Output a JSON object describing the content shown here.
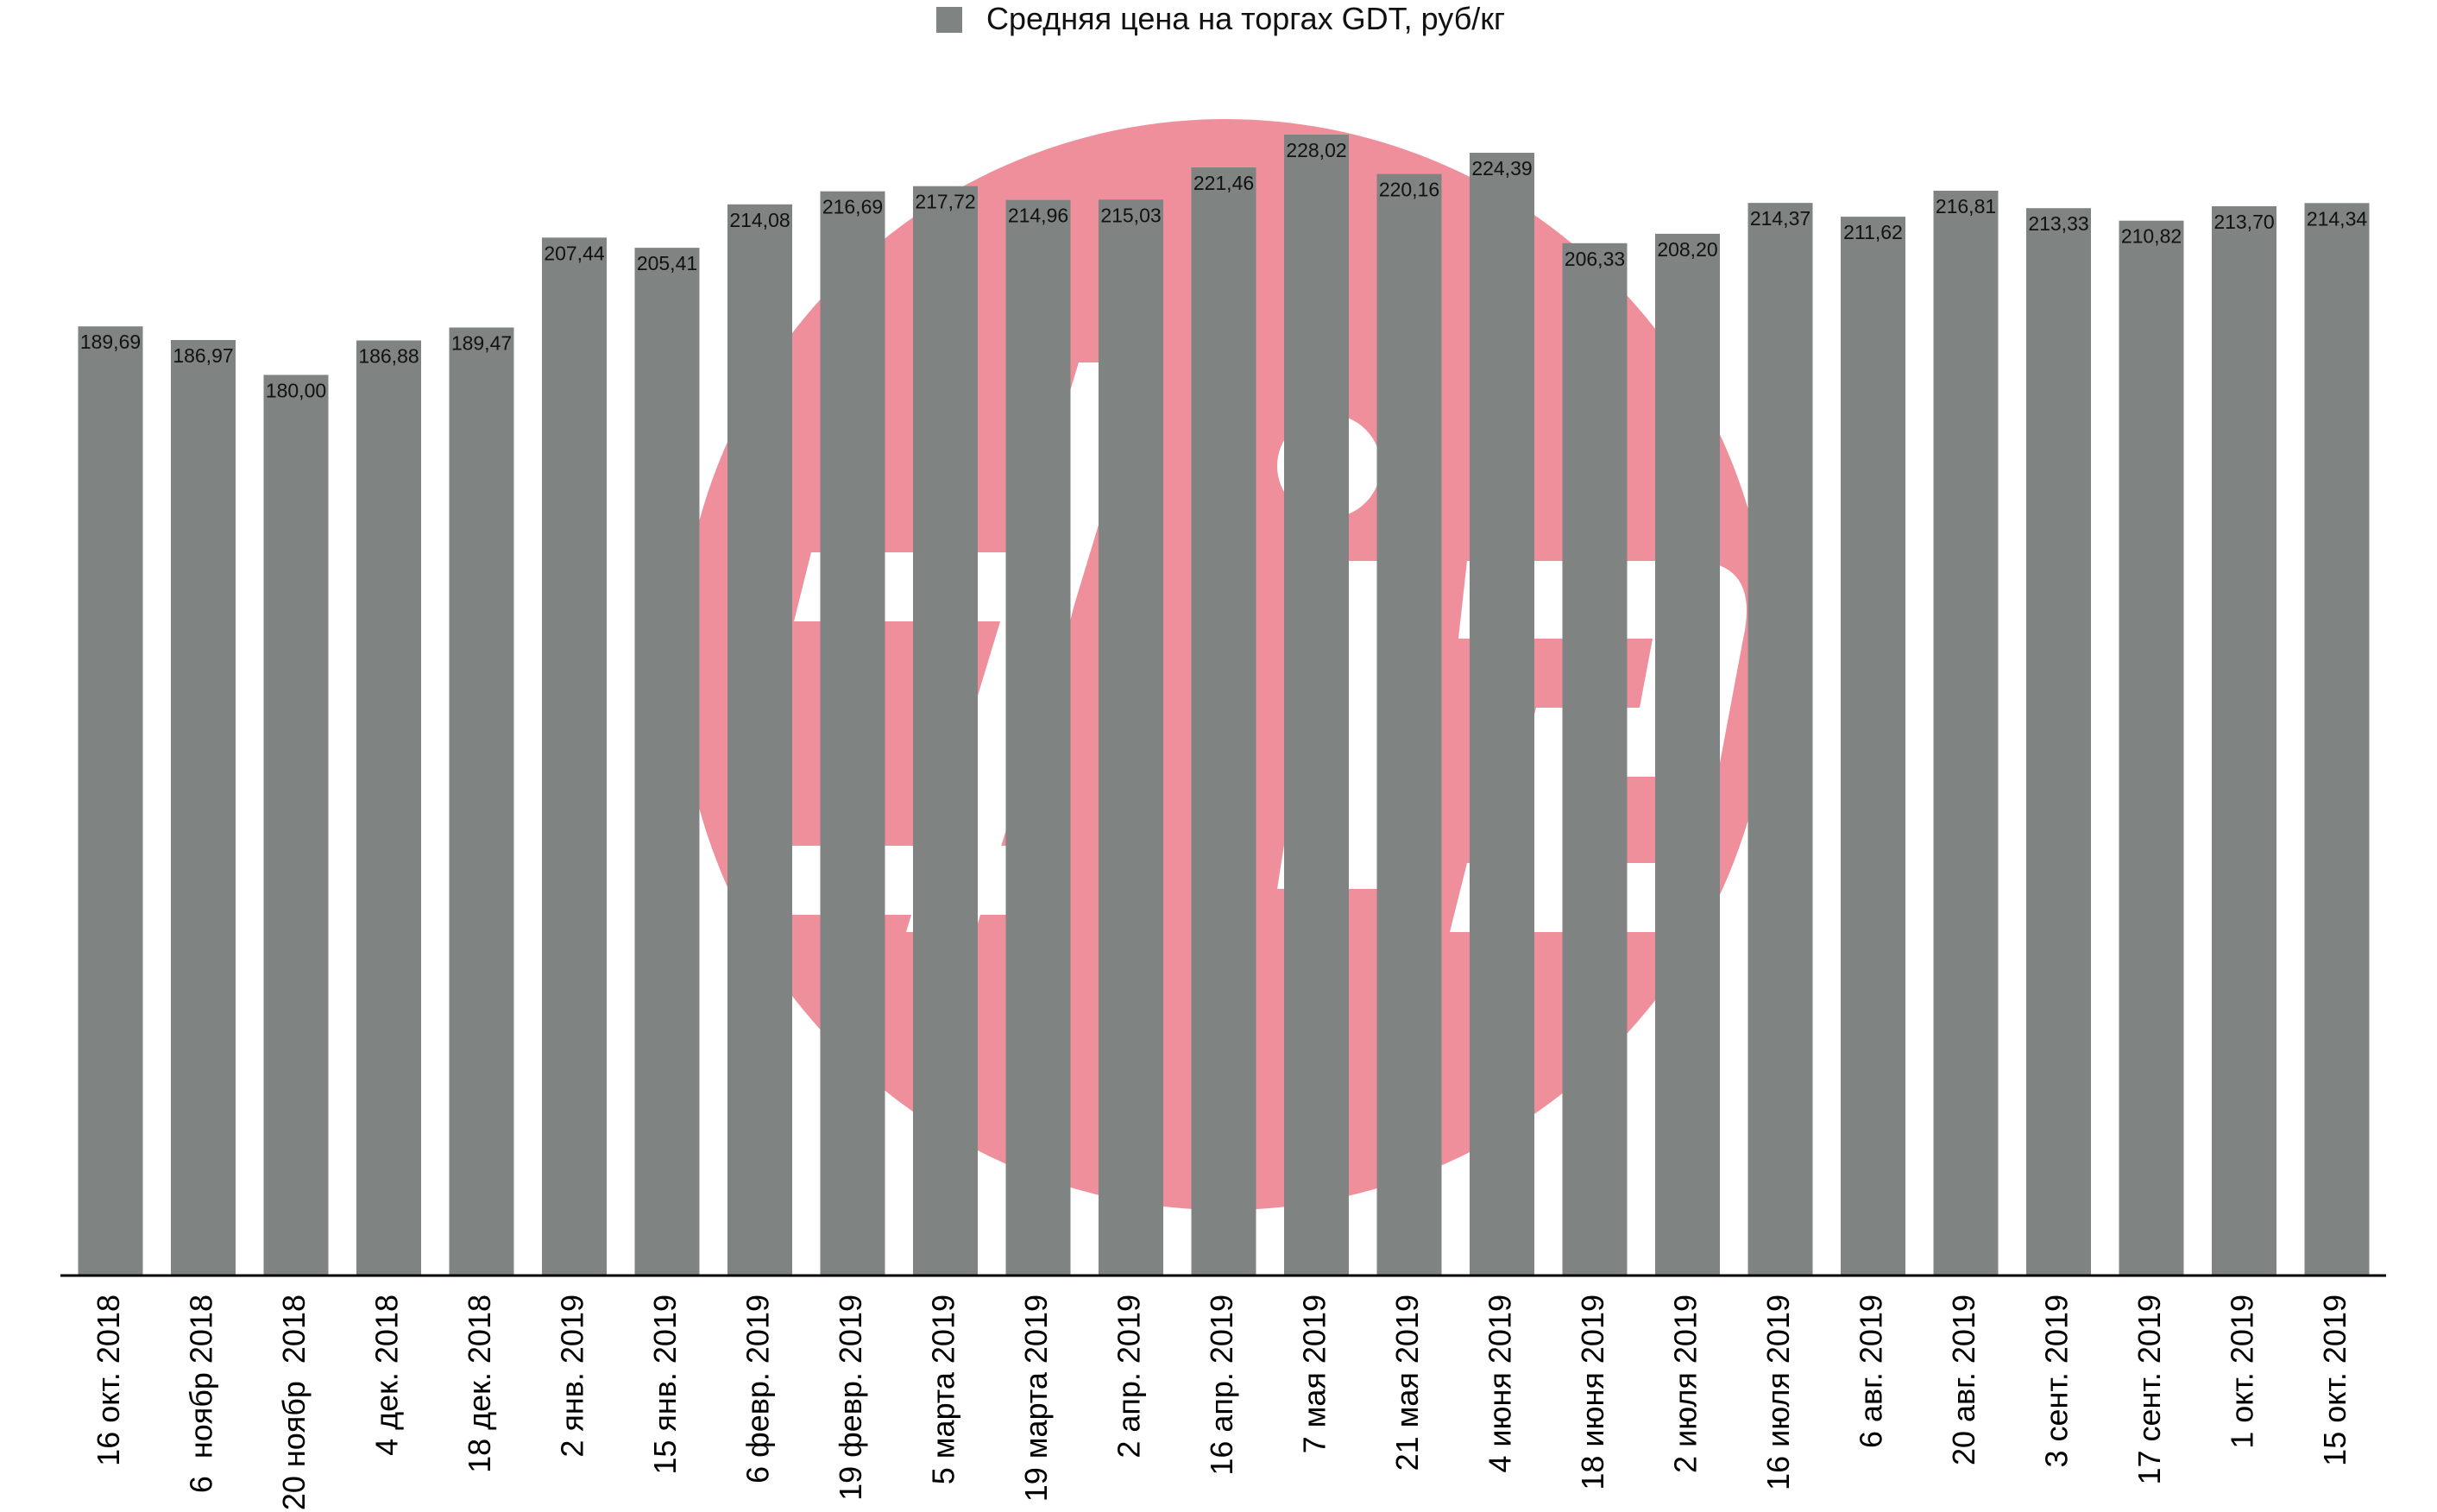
{
  "colors": {
    "bar": "#7f8483",
    "watermark": "#ef8f9b",
    "axis": "#000000",
    "background": "#ffffff"
  },
  "legend": {
    "position": "top-center",
    "label": "Средняя цена на торгах GDT, руб/кг",
    "icon": "gray-square-swatch-icon"
  },
  "chart_data": {
    "type": "bar",
    "title": "",
    "xlabel": "",
    "ylabel": "",
    "ylim": [
      0,
      228.02
    ],
    "grid": false,
    "legend_position": "top-center",
    "categories": [
      "16 окт. 2018",
      "6  ноябр 2018",
      "20 ноябр  2018",
      "4 дек. 2018",
      "18 дек. 2018",
      "2 янв. 2019",
      "15 янв. 2019",
      "6 февр. 2019",
      "19 февр. 2019",
      "5 марта 2019",
      "19 марта 2019",
      "2 апр. 2019",
      "16 апр. 2019",
      "7 мая 2019",
      "21 мая 2019",
      "4 июня 2019",
      "18 июня 2019",
      "2 июля 2019",
      "16 июля 2019",
      "6 авг. 2019",
      "20 авг. 2019",
      "3 сент. 2019",
      "17 сент. 2019",
      "1 окт. 2019",
      "15 окт. 2019"
    ],
    "series": [
      {
        "name": "Средняя цена на торгах GDT, руб/кг",
        "values": [
          189.69,
          186.97,
          180.0,
          186.88,
          189.47,
          207.44,
          205.41,
          214.08,
          216.69,
          217.72,
          214.96,
          215.03,
          221.46,
          228.02,
          220.16,
          224.39,
          206.33,
          208.2,
          214.37,
          211.62,
          216.81,
          213.33,
          210.82,
          213.7,
          214.34
        ]
      }
    ],
    "value_labels": [
      "189,69",
      "186,97",
      "180,00",
      "186,88",
      "189,47",
      "207,44",
      "205,41",
      "214,08",
      "216,69",
      "217,72",
      "214,96",
      "215,03",
      "221,46",
      "228,02",
      "220,16",
      "224,39",
      "206,33",
      "208,20",
      "214,37",
      "211,62",
      "216,81",
      "213,33",
      "210,82",
      "213,70",
      "214,34"
    ]
  }
}
